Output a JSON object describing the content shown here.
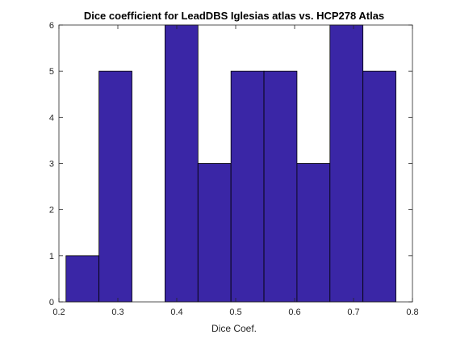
{
  "chart_data": {
    "type": "bar",
    "title": "Dice coefficient for LeadDBS Iglesias atlas vs. HCP278 Atlas",
    "xlabel": "Dice Coef.",
    "ylabel": "",
    "xlim": [
      0.2,
      0.8
    ],
    "ylim": [
      0,
      6
    ],
    "xticks": [
      "0.2",
      "0.3",
      "0.4",
      "0.5",
      "0.6",
      "0.7",
      "0.8"
    ],
    "yticks": [
      "0",
      "1",
      "2",
      "3",
      "4",
      "5",
      "6"
    ],
    "bins": [
      {
        "x0": 0.212,
        "x1": 0.268,
        "value": 1
      },
      {
        "x0": 0.268,
        "x1": 0.324,
        "value": 5
      },
      {
        "x0": 0.324,
        "x1": 0.38,
        "value": 0
      },
      {
        "x0": 0.38,
        "x1": 0.436,
        "value": 6
      },
      {
        "x0": 0.436,
        "x1": 0.492,
        "value": 3
      },
      {
        "x0": 0.492,
        "x1": 0.548,
        "value": 5
      },
      {
        "x0": 0.548,
        "x1": 0.604,
        "value": 5
      },
      {
        "x0": 0.604,
        "x1": 0.66,
        "value": 3
      },
      {
        "x0": 0.66,
        "x1": 0.716,
        "value": 6
      },
      {
        "x0": 0.716,
        "x1": 0.772,
        "value": 5
      }
    ],
    "bar_color": "#3a26a6",
    "edge_color": "#000000",
    "grid": false
  }
}
